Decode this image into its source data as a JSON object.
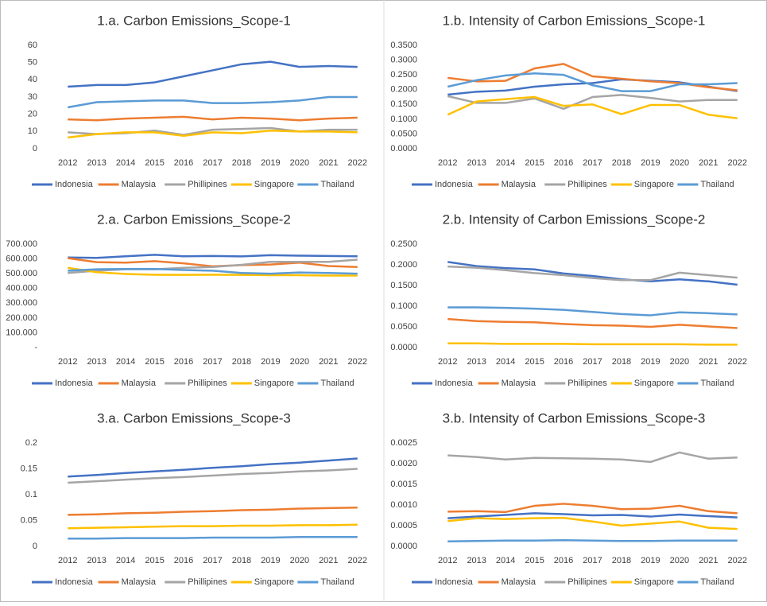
{
  "chart_data": [
    {
      "type": "line",
      "title": "1.a. Carbon Emissions_Scope-1",
      "categories": [
        "2012",
        "2013",
        "2014",
        "2015",
        "2016",
        "2017",
        "2018",
        "2019",
        "2020",
        "2021",
        "2022"
      ],
      "ylim": [
        0,
        60
      ],
      "yticks": [
        0,
        10,
        20,
        30,
        40,
        50,
        60
      ],
      "series": [
        {
          "name": "Indonesia",
          "color": "#4472c4",
          "values": [
            36,
            37,
            37,
            38.5,
            42,
            45.5,
            49,
            50.5,
            47.5,
            48,
            47.5
          ]
        },
        {
          "name": "Malaysia",
          "color": "#ed7d31",
          "values": [
            17,
            16.5,
            17.5,
            18,
            18.5,
            17,
            18,
            17.5,
            16.5,
            17.5,
            18
          ]
        },
        {
          "name": "Phillipines",
          "color": "#a5a5a5",
          "values": [
            9.5,
            8.5,
            9,
            10.5,
            8,
            11,
            11.5,
            12,
            10,
            11,
            11
          ]
        },
        {
          "name": "Singapore",
          "color": "#ffc000",
          "values": [
            6.5,
            8.5,
            9.5,
            9.5,
            7.5,
            9.5,
            9,
            10.5,
            10,
            10,
            9.5
          ]
        },
        {
          "name": "Thailand",
          "color": "#5b9bd5",
          "values": [
            24,
            27,
            27.5,
            28,
            28,
            26.5,
            26.5,
            27,
            28,
            30,
            30
          ]
        }
      ]
    },
    {
      "type": "line",
      "title": "1.b. Intensity of Carbon Emissions_Scope-1",
      "categories": [
        "2012",
        "2013",
        "2014",
        "2015",
        "2016",
        "2017",
        "2018",
        "2019",
        "2020",
        "2021",
        "2022"
      ],
      "ylim": [
        0,
        0.35
      ],
      "yticks": [
        {
          "value": 0,
          "label": "0.0000"
        },
        {
          "value": 0.05,
          "label": "0.0500"
        },
        {
          "value": 0.1,
          "label": "0.1000"
        },
        {
          "value": 0.15,
          "label": "0.1500"
        },
        {
          "value": 0.2,
          "label": "0.2000"
        },
        {
          "value": 0.25,
          "label": "0.2500"
        },
        {
          "value": 0.3,
          "label": "0.3000"
        },
        {
          "value": 0.35,
          "label": "0.3500"
        }
      ],
      "series": [
        {
          "name": "Indonesia",
          "color": "#4472c4",
          "values": [
            0.183,
            0.193,
            0.197,
            0.21,
            0.218,
            0.222,
            0.235,
            0.23,
            0.225,
            0.21,
            0.195
          ]
        },
        {
          "name": "Malaysia",
          "color": "#ed7d31",
          "values": [
            0.24,
            0.228,
            0.23,
            0.272,
            0.287,
            0.245,
            0.237,
            0.228,
            0.222,
            0.208,
            0.198
          ]
        },
        {
          "name": "Phillipines",
          "color": "#a5a5a5",
          "values": [
            0.178,
            0.155,
            0.155,
            0.17,
            0.135,
            0.175,
            0.182,
            0.172,
            0.16,
            0.165,
            0.165
          ]
        },
        {
          "name": "Singapore",
          "color": "#ffc000",
          "values": [
            0.115,
            0.16,
            0.168,
            0.175,
            0.145,
            0.15,
            0.117,
            0.148,
            0.148,
            0.115,
            0.103
          ]
        },
        {
          "name": "Thailand",
          "color": "#5b9bd5",
          "values": [
            0.21,
            0.232,
            0.248,
            0.255,
            0.25,
            0.215,
            0.195,
            0.195,
            0.218,
            0.218,
            0.222
          ]
        }
      ]
    },
    {
      "type": "line",
      "title": "2.a. Carbon Emissions_Scope-2",
      "categories": [
        "2012",
        "2013",
        "2014",
        "2015",
        "2016",
        "2017",
        "2018",
        "2019",
        "2020",
        "2021",
        "2022"
      ],
      "ylim": [
        0,
        700000
      ],
      "yticks": [
        {
          "value": 0,
          "label": "-"
        },
        {
          "value": 100000,
          "label": "100.000"
        },
        {
          "value": 200000,
          "label": "200.000"
        },
        {
          "value": 300000,
          "label": "300.000"
        },
        {
          "value": 400000,
          "label": "400.000"
        },
        {
          "value": 500000,
          "label": "500.000"
        },
        {
          "value": 600000,
          "label": "600.000"
        },
        {
          "value": 700000,
          "label": "700.000"
        }
      ],
      "series": [
        {
          "name": "Indonesia",
          "color": "#4472c4",
          "values": [
            610000,
            607000,
            618000,
            628000,
            618000,
            620000,
            617000,
            625000,
            622000,
            620000,
            618000
          ]
        },
        {
          "name": "Malaysia",
          "color": "#ed7d31",
          "values": [
            605000,
            578000,
            575000,
            585000,
            570000,
            550000,
            558000,
            562000,
            575000,
            552000,
            545000
          ]
        },
        {
          "name": "Phillipines",
          "color": "#a5a5a5",
          "values": [
            505000,
            520000,
            530000,
            530000,
            540000,
            545000,
            560000,
            580000,
            580000,
            580000,
            595000
          ]
        },
        {
          "name": "Singapore",
          "color": "#ffc000",
          "values": [
            540000,
            510000,
            498000,
            493000,
            492000,
            493000,
            492000,
            490000,
            490000,
            487000,
            487000
          ]
        },
        {
          "name": "Thailand",
          "color": "#5b9bd5",
          "values": [
            520000,
            530000,
            532000,
            532000,
            525000,
            520000,
            505000,
            500000,
            508000,
            505000,
            500000
          ]
        }
      ]
    },
    {
      "type": "line",
      "title": "2.b. Intensity of Carbon Emissions_Scope-2",
      "categories": [
        "2012",
        "2013",
        "2014",
        "2015",
        "2016",
        "2017",
        "2018",
        "2019",
        "2020",
        "2021",
        "2022"
      ],
      "ylim": [
        0,
        0.25
      ],
      "yticks": [
        {
          "value": 0,
          "label": "0.0000"
        },
        {
          "value": 0.05,
          "label": "0.0500"
        },
        {
          "value": 0.1,
          "label": "0.1000"
        },
        {
          "value": 0.15,
          "label": "0.1500"
        },
        {
          "value": 0.2,
          "label": "0.2000"
        },
        {
          "value": 0.25,
          "label": "0.2500"
        }
      ],
      "series": [
        {
          "name": "Indonesia",
          "color": "#4472c4",
          "values": [
            0.207,
            0.197,
            0.192,
            0.189,
            0.179,
            0.173,
            0.165,
            0.16,
            0.165,
            0.16,
            0.152
          ]
        },
        {
          "name": "Malaysia",
          "color": "#ed7d31",
          "values": [
            0.069,
            0.064,
            0.062,
            0.061,
            0.057,
            0.054,
            0.053,
            0.05,
            0.055,
            0.051,
            0.047
          ]
        },
        {
          "name": "Phillipines",
          "color": "#a5a5a5",
          "values": [
            0.196,
            0.193,
            0.187,
            0.18,
            0.175,
            0.168,
            0.163,
            0.163,
            0.181,
            0.175,
            0.169
          ]
        },
        {
          "name": "Singapore",
          "color": "#ffc000",
          "values": [
            0.01,
            0.01,
            0.009,
            0.009,
            0.009,
            0.008,
            0.008,
            0.008,
            0.008,
            0.007,
            0.007
          ]
        },
        {
          "name": "Thailand",
          "color": "#5b9bd5",
          "values": [
            0.097,
            0.097,
            0.096,
            0.094,
            0.091,
            0.086,
            0.081,
            0.078,
            0.085,
            0.083,
            0.08
          ]
        }
      ]
    },
    {
      "type": "line",
      "title": "3.a. Carbon Emissions_Scope-3",
      "categories": [
        "2012",
        "2013",
        "2014",
        "2015",
        "2016",
        "2017",
        "2018",
        "2019",
        "2020",
        "2021",
        "2022"
      ],
      "ylim": [
        0,
        0.2
      ],
      "yticks": [
        0,
        0.05,
        0.1,
        0.15,
        0.2
      ],
      "series": [
        {
          "name": "Indonesia",
          "color": "#4472c4",
          "values": [
            0.135,
            0.138,
            0.142,
            0.145,
            0.148,
            0.152,
            0.155,
            0.159,
            0.162,
            0.166,
            0.17
          ]
        },
        {
          "name": "Malaysia",
          "color": "#ed7d31",
          "values": [
            0.061,
            0.062,
            0.064,
            0.065,
            0.067,
            0.068,
            0.07,
            0.071,
            0.073,
            0.074,
            0.075
          ]
        },
        {
          "name": "Phillipines",
          "color": "#a5a5a5",
          "values": [
            0.123,
            0.126,
            0.129,
            0.132,
            0.134,
            0.137,
            0.14,
            0.142,
            0.145,
            0.147,
            0.15
          ]
        },
        {
          "name": "Singapore",
          "color": "#ffc000",
          "values": [
            0.035,
            0.036,
            0.037,
            0.038,
            0.039,
            0.039,
            0.04,
            0.04,
            0.041,
            0.041,
            0.042
          ]
        },
        {
          "name": "Thailand",
          "color": "#5b9bd5",
          "values": [
            0.015,
            0.015,
            0.016,
            0.016,
            0.016,
            0.017,
            0.017,
            0.017,
            0.018,
            0.018,
            0.018
          ]
        }
      ]
    },
    {
      "type": "line",
      "title": "3.b. Intensity of Carbon Emissions_Scope-3",
      "categories": [
        "2012",
        "2013",
        "2014",
        "2015",
        "2016",
        "2017",
        "2018",
        "2019",
        "2020",
        "2021",
        "2022"
      ],
      "ylim": [
        0,
        0.0025
      ],
      "yticks": [
        {
          "value": 0,
          "label": "0.0000"
        },
        {
          "value": 0.0005,
          "label": "0.0005"
        },
        {
          "value": 0.001,
          "label": "0.0010"
        },
        {
          "value": 0.0015,
          "label": "0.0015"
        },
        {
          "value": 0.002,
          "label": "0.0020"
        },
        {
          "value": 0.0025,
          "label": "0.0025"
        }
      ],
      "series": [
        {
          "name": "Indonesia",
          "color": "#4472c4",
          "values": [
            0.00068,
            0.00072,
            0.00076,
            0.0008,
            0.00078,
            0.00075,
            0.00076,
            0.00072,
            0.00077,
            0.00073,
            0.0007
          ]
        },
        {
          "name": "Malaysia",
          "color": "#ed7d31",
          "values": [
            0.00084,
            0.00085,
            0.00083,
            0.00098,
            0.00103,
            0.00098,
            0.0009,
            0.00091,
            0.00098,
            0.00085,
            0.0008
          ]
        },
        {
          "name": "Phillipines",
          "color": "#a5a5a5",
          "values": [
            0.0022,
            0.00216,
            0.0021,
            0.00214,
            0.00213,
            0.00212,
            0.0021,
            0.00204,
            0.00227,
            0.00212,
            0.00215
          ]
        },
        {
          "name": "Singapore",
          "color": "#ffc000",
          "values": [
            0.00061,
            0.00068,
            0.00066,
            0.00068,
            0.00069,
            0.0006,
            0.0005,
            0.00055,
            0.0006,
            0.00045,
            0.00042
          ]
        },
        {
          "name": "Thailand",
          "color": "#5b9bd5",
          "values": [
            0.00012,
            0.00013,
            0.00014,
            0.00014,
            0.00015,
            0.00014,
            0.00013,
            0.00013,
            0.00014,
            0.00014,
            0.00014
          ]
        }
      ]
    }
  ]
}
